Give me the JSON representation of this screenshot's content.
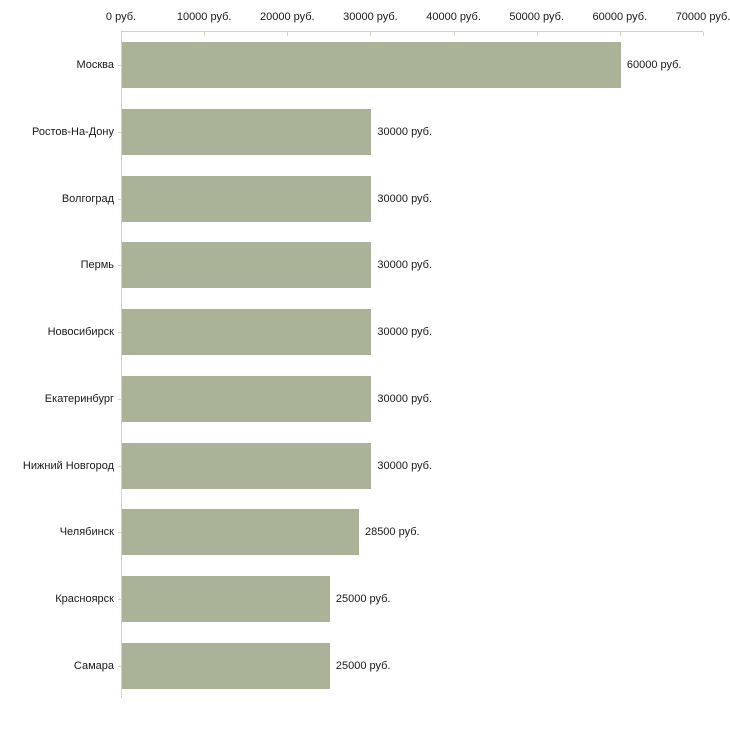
{
  "chart_data": {
    "type": "bar",
    "orientation": "horizontal",
    "title": "",
    "xlabel": "",
    "ylabel": "",
    "categories": [
      "Москва",
      "Ростов-На-Дону",
      "Волгоград",
      "Пермь",
      "Новосибирск",
      "Екатеринбург",
      "Нижний Новгород",
      "Челябинск",
      "Красноярск",
      "Самара"
    ],
    "values": [
      60000,
      30000,
      30000,
      30000,
      30000,
      30000,
      30000,
      28500,
      25000,
      25000
    ],
    "value_labels": [
      "60000 руб.",
      "30000 руб.",
      "30000 руб.",
      "30000 руб.",
      "30000 руб.",
      "30000 руб.",
      "30000 руб.",
      "28500 руб.",
      "25000 руб.",
      "25000 руб."
    ],
    "x_tick_labels": [
      "0 руб.",
      "10000 руб.",
      "20000 руб.",
      "30000 руб.",
      "40000 руб.",
      "50000 руб.",
      "60000 руб.",
      "70000 руб."
    ],
    "xlim": [
      0,
      70000
    ],
    "x_tick_step": 10000,
    "grid": false,
    "legend": false,
    "colors": {
      "bar_fill": "#aab398",
      "axis": "#d6d2bc",
      "text": "#1a1a1a",
      "background": "#ffffff"
    }
  }
}
